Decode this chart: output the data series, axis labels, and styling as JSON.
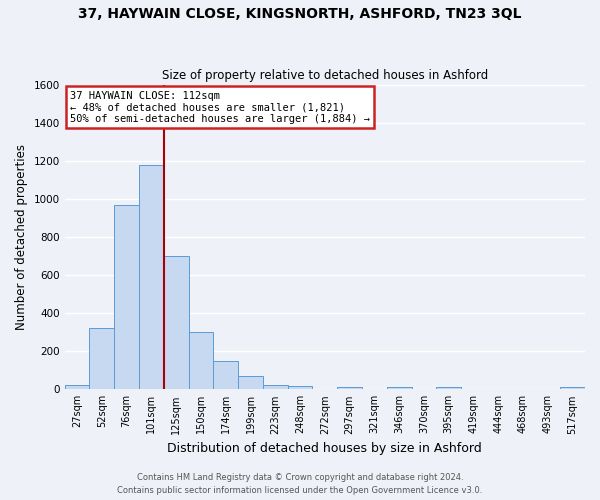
{
  "title_line1": "37, HAYWAIN CLOSE, KINGSNORTH, ASHFORD, TN23 3QL",
  "title_line2": "Size of property relative to detached houses in Ashford",
  "xlabel": "Distribution of detached houses by size in Ashford",
  "ylabel": "Number of detached properties",
  "bar_labels": [
    "27sqm",
    "52sqm",
    "76sqm",
    "101sqm",
    "125sqm",
    "150sqm",
    "174sqm",
    "199sqm",
    "223sqm",
    "248sqm",
    "272sqm",
    "297sqm",
    "321sqm",
    "346sqm",
    "370sqm",
    "395sqm",
    "419sqm",
    "444sqm",
    "468sqm",
    "493sqm",
    "517sqm"
  ],
  "bar_values": [
    25,
    320,
    970,
    1180,
    700,
    300,
    150,
    70,
    25,
    15,
    0,
    10,
    0,
    10,
    0,
    10,
    0,
    0,
    0,
    0,
    10
  ],
  "bar_color": "#c6d9f0",
  "bar_edge_color": "#5b9bd5",
  "ylim": [
    0,
    1600
  ],
  "yticks": [
    0,
    200,
    400,
    600,
    800,
    1000,
    1200,
    1400,
    1600
  ],
  "vline_color": "#aa0000",
  "annotation_title": "37 HAYWAIN CLOSE: 112sqm",
  "annotation_line1": "← 48% of detached houses are smaller (1,821)",
  "annotation_line2": "50% of semi-detached houses are larger (1,884) →",
  "annotation_box_color": "#ffffff",
  "annotation_box_edge": "#cc2222",
  "footer_line1": "Contains HM Land Registry data © Crown copyright and database right 2024.",
  "footer_line2": "Contains public sector information licensed under the Open Government Licence v3.0.",
  "bg_color": "#eef2f8",
  "grid_color": "#ffffff",
  "tick_label_fontsize": 7,
  "ylabel_fontsize": 8.5,
  "xlabel_fontsize": 9,
  "title1_fontsize": 10,
  "title2_fontsize": 8.5,
  "footer_fontsize": 6
}
